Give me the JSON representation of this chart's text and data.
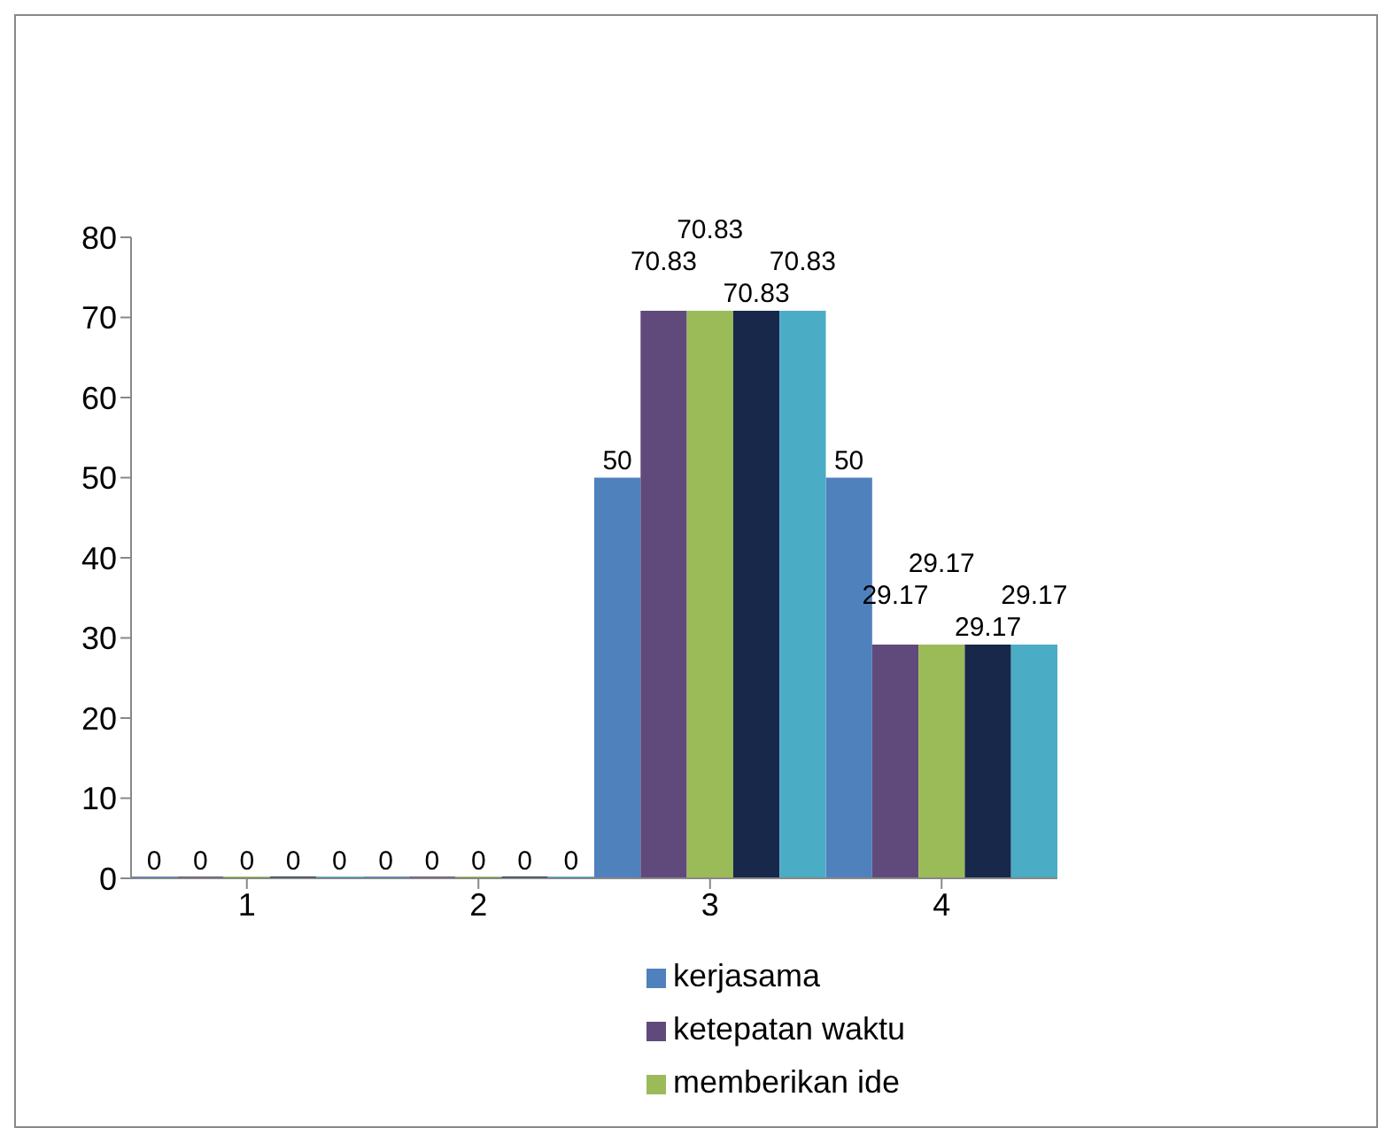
{
  "chart_data": {
    "type": "bar",
    "categories": [
      "1",
      "2",
      "3",
      "4"
    ],
    "series": [
      {
        "name": "kerjasama",
        "color": "#4f81bd",
        "values": [
          0,
          0,
          50,
          50
        ]
      },
      {
        "name": "ketepatan waktu",
        "color": "#604a7b",
        "values": [
          0,
          0,
          70.83,
          29.17
        ]
      },
      {
        "name": "memberikan ide",
        "color": "#9bbb59",
        "values": [
          0,
          0,
          70.83,
          29.17
        ]
      },
      {
        "color": "#17284a",
        "values": [
          0,
          0,
          70.83,
          29.17
        ]
      },
      {
        "color": "#4bacc6",
        "values": [
          0,
          0,
          70.83,
          29.17
        ]
      }
    ],
    "ylim": [
      0,
      80
    ],
    "yticks": [
      0,
      10,
      20,
      30,
      40,
      50,
      60,
      70,
      80
    ],
    "grid": false,
    "legend": "bottom",
    "data_labels": true
  }
}
